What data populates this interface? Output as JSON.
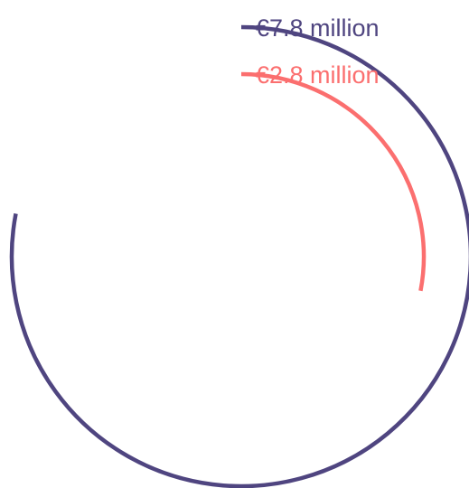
{
  "chart_data": {
    "type": "radial-bar",
    "series": [
      {
        "label": "€7.8 million",
        "value": 7.8,
        "color": "#4f4580"
      },
      {
        "label": "€2.8 million",
        "value": 2.8,
        "color": "#fb6f6f"
      }
    ]
  }
}
